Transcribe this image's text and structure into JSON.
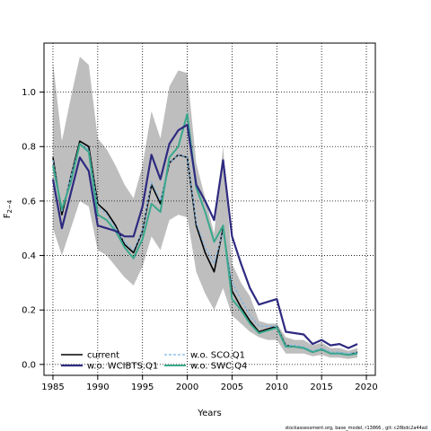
{
  "chart_data": {
    "type": "line",
    "xlabel": "Years",
    "ylabel_main": "F",
    "ylabel_sub": "2−4",
    "xlim": [
      1984,
      2021
    ],
    "ylim": [
      -0.04,
      1.18
    ],
    "xticks": [
      1985,
      1990,
      1995,
      2000,
      2005,
      2010,
      2015,
      2020
    ],
    "yticks": [
      0.0,
      0.2,
      0.4,
      0.6,
      0.8,
      1.0
    ],
    "ytick_labels": [
      "0.0",
      "0.2",
      "0.4",
      "0.6",
      "0.8",
      "1.0"
    ],
    "grid": true,
    "legend_position": "bottom-left",
    "x": [
      1985,
      1986,
      1987,
      1988,
      1989,
      1990,
      1991,
      1992,
      1993,
      1994,
      1995,
      1996,
      1997,
      1998,
      1999,
      2000,
      2001,
      2002,
      2003,
      2004,
      2005,
      2006,
      2007,
      2008,
      2009,
      2010,
      2011,
      2012,
      2013,
      2014,
      2015,
      2016,
      2017,
      2018,
      2019
    ],
    "band": {
      "color": "#bebebe",
      "upper": [
        1.11,
        0.82,
        0.98,
        1.13,
        1.1,
        0.83,
        0.79,
        0.73,
        0.66,
        0.61,
        0.73,
        0.93,
        0.83,
        1.02,
        1.08,
        1.07,
        0.74,
        0.61,
        0.48,
        0.8,
        0.37,
        0.3,
        0.25,
        0.16,
        0.15,
        0.15,
        0.1,
        0.09,
        0.09,
        0.07,
        0.08,
        0.06,
        0.06,
        0.05,
        0.06
      ],
      "lower": [
        0.5,
        0.4,
        0.5,
        0.6,
        0.58,
        0.42,
        0.4,
        0.36,
        0.32,
        0.29,
        0.36,
        0.47,
        0.42,
        0.53,
        0.55,
        0.54,
        0.34,
        0.26,
        0.2,
        0.28,
        0.18,
        0.15,
        0.12,
        0.1,
        0.09,
        0.09,
        0.04,
        0.04,
        0.04,
        0.03,
        0.035,
        0.025,
        0.025,
        0.02,
        0.025
      ]
    },
    "series": [
      {
        "name": "current",
        "color": "#000000",
        "width": 1.6,
        "dash": "",
        "values": [
          0.76,
          0.55,
          0.69,
          0.82,
          0.8,
          0.59,
          0.56,
          0.51,
          0.44,
          0.41,
          0.49,
          0.66,
          0.59,
          0.74,
          0.77,
          0.76,
          0.51,
          0.41,
          0.34,
          0.5,
          0.27,
          0.21,
          0.16,
          0.12,
          0.13,
          0.14,
          0.07,
          0.065,
          0.06,
          0.045,
          0.055,
          0.04,
          0.04,
          0.035,
          0.045
        ]
      },
      {
        "name": "w.o. WCIBTS.Q1",
        "color": "#2e2a80",
        "width": 2.2,
        "dash": "",
        "values": [
          0.68,
          0.5,
          0.63,
          0.76,
          0.71,
          0.51,
          0.5,
          0.49,
          0.47,
          0.47,
          0.58,
          0.77,
          0.68,
          0.81,
          0.86,
          0.88,
          0.66,
          0.6,
          0.53,
          0.75,
          0.47,
          0.37,
          0.28,
          0.22,
          0.23,
          0.24,
          0.12,
          0.115,
          0.11,
          0.075,
          0.09,
          0.07,
          0.075,
          0.06,
          0.075
        ]
      },
      {
        "name": "w.o. SCO.Q1",
        "color": "#7bb3e6",
        "width": 1.2,
        "dash": "3,2",
        "values": [
          0.75,
          0.56,
          0.69,
          0.81,
          0.79,
          0.58,
          0.55,
          0.5,
          0.45,
          0.42,
          0.49,
          0.67,
          0.6,
          0.74,
          0.77,
          0.76,
          0.52,
          0.43,
          0.37,
          0.49,
          0.3,
          0.24,
          0.18,
          0.14,
          0.14,
          0.14,
          0.07,
          0.07,
          0.065,
          0.05,
          0.06,
          0.045,
          0.045,
          0.04,
          0.045
        ]
      },
      {
        "name": "w.o. SWC.Q4",
        "color": "#3aa88c",
        "width": 2.0,
        "dash": "",
        "values": [
          0.73,
          0.57,
          0.67,
          0.81,
          0.78,
          0.55,
          0.53,
          0.49,
          0.43,
          0.39,
          0.46,
          0.59,
          0.56,
          0.76,
          0.8,
          0.92,
          0.65,
          0.56,
          0.45,
          0.51,
          0.24,
          0.2,
          0.15,
          0.115,
          0.125,
          0.135,
          0.065,
          0.065,
          0.06,
          0.045,
          0.055,
          0.04,
          0.04,
          0.035,
          0.04
        ]
      }
    ],
    "legend": {
      "items": [
        {
          "label": "current",
          "series": 0
        },
        {
          "label": "w.o. WCIBTS.Q1",
          "series": 1
        },
        {
          "label": "w.o. SCO.Q1",
          "series": 2
        },
        {
          "label": "w.o. SWC.Q4",
          "series": 3
        }
      ]
    },
    "footnote": "stockassessment.org, base_model, r13866 , git: c28bdc2a44ad"
  }
}
